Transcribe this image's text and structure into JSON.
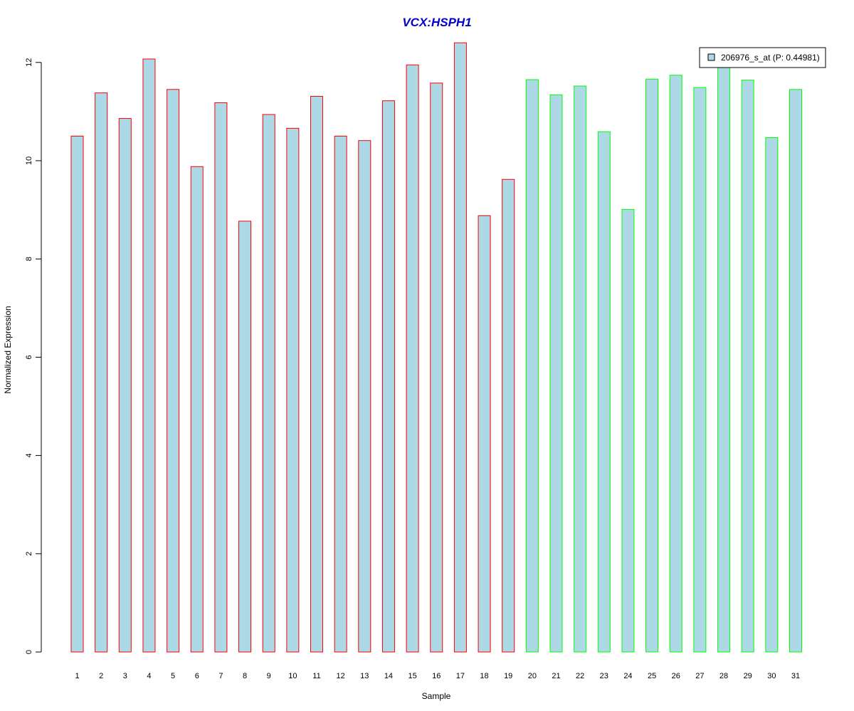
{
  "chart_data": {
    "type": "bar",
    "title": "VCX:HSPH1",
    "xlabel": "Sample",
    "ylabel": "Normalized Expression",
    "categories": [
      "1",
      "2",
      "3",
      "4",
      "5",
      "6",
      "7",
      "8",
      "9",
      "10",
      "11",
      "12",
      "13",
      "14",
      "15",
      "16",
      "17",
      "18",
      "19",
      "20",
      "21",
      "22",
      "23",
      "24",
      "25",
      "26",
      "27",
      "28",
      "29",
      "30",
      "31"
    ],
    "series": [
      {
        "name": "206976_s_at (P: 0.44981)",
        "values": [
          10.5,
          11.38,
          10.86,
          12.07,
          11.45,
          9.88,
          11.18,
          8.77,
          10.94,
          10.66,
          11.31,
          10.5,
          10.41,
          11.22,
          11.95,
          11.58,
          12.4,
          8.88,
          9.62,
          11.65,
          11.34,
          11.52,
          10.59,
          9.01,
          11.66,
          11.74,
          11.49,
          11.97,
          11.64,
          10.47,
          11.45
        ]
      }
    ],
    "groups": [
      {
        "samples": [
          1,
          19
        ],
        "border_color": "#ff0000"
      },
      {
        "samples": [
          20,
          31
        ],
        "border_color": "#00ff00"
      }
    ],
    "yticks": [
      0,
      2,
      4,
      6,
      8,
      10,
      12
    ],
    "ylim": [
      0,
      12.4
    ],
    "grid": false,
    "legend_position": "top-right",
    "colors": {
      "bar_fill": "#add8e6",
      "title": "#0000cd",
      "axis": "#000000"
    }
  }
}
